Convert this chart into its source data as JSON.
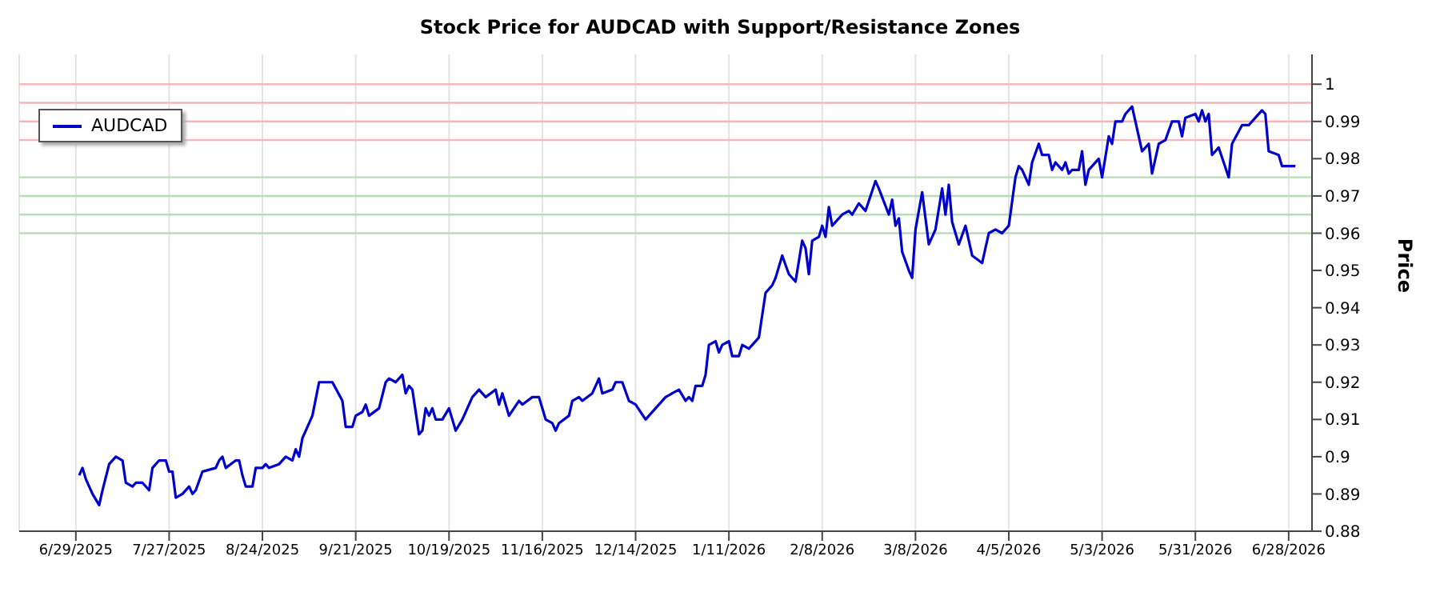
{
  "chart_data": {
    "type": "line",
    "title": "Stock Price for AUDCAD with Support/Resistance Zones",
    "ylabel": "Price",
    "x": [
      "2025-06-30",
      "2025-07-01",
      "2025-07-02",
      "2025-07-04",
      "2025-07-06",
      "2025-07-07",
      "2025-07-09",
      "2025-07-11",
      "2025-07-13",
      "2025-07-14",
      "2025-07-16",
      "2025-07-17",
      "2025-07-19",
      "2025-07-21",
      "2025-07-22",
      "2025-07-24",
      "2025-07-26",
      "2025-07-27",
      "2025-07-28",
      "2025-07-29",
      "2025-07-31",
      "2025-08-02",
      "2025-08-03",
      "2025-08-04",
      "2025-08-06",
      "2025-08-10",
      "2025-08-11",
      "2025-08-12",
      "2025-08-13",
      "2025-08-16",
      "2025-08-17",
      "2025-08-18",
      "2025-08-19",
      "2025-08-21",
      "2025-08-22",
      "2025-08-24",
      "2025-08-25",
      "2025-08-26",
      "2025-08-29",
      "2025-08-31",
      "2025-09-02",
      "2025-09-03",
      "2025-09-04",
      "2025-09-05",
      "2025-09-06",
      "2025-09-08",
      "2025-09-10",
      "2025-09-13",
      "2025-09-14",
      "2025-09-17",
      "2025-09-18",
      "2025-09-20",
      "2025-09-21",
      "2025-09-23",
      "2025-09-24",
      "2025-09-25",
      "2025-09-28",
      "2025-09-30",
      "2025-10-01",
      "2025-10-03",
      "2025-10-05",
      "2025-10-06",
      "2025-10-07",
      "2025-10-08",
      "2025-10-10",
      "2025-10-11",
      "2025-10-12",
      "2025-10-13",
      "2025-10-14",
      "2025-10-15",
      "2025-10-17",
      "2025-10-19",
      "2025-10-21",
      "2025-10-23",
      "2025-10-26",
      "2025-10-28",
      "2025-10-30",
      "2025-11-02",
      "2025-11-03",
      "2025-11-04",
      "2025-11-06",
      "2025-11-09",
      "2025-11-10",
      "2025-11-13",
      "2025-11-15",
      "2025-11-17",
      "2025-11-19",
      "2025-11-20",
      "2025-11-21",
      "2025-11-24",
      "2025-11-25",
      "2025-11-27",
      "2025-11-28",
      "2025-12-01",
      "2025-12-03",
      "2025-12-04",
      "2025-12-07",
      "2025-12-08",
      "2025-12-10",
      "2025-12-12",
      "2025-12-14",
      "2025-12-17",
      "2025-12-18",
      "2025-12-23",
      "2025-12-25",
      "2025-12-27",
      "2025-12-29",
      "2025-12-30",
      "2025-12-31",
      "2026-01-01",
      "2026-01-03",
      "2026-01-04",
      "2026-01-05",
      "2026-01-07",
      "2026-01-08",
      "2026-01-09",
      "2026-01-11",
      "2026-01-12",
      "2026-01-14",
      "2026-01-15",
      "2026-01-17",
      "2026-01-20",
      "2026-01-22",
      "2026-01-24",
      "2026-01-25",
      "2026-01-27",
      "2026-01-29",
      "2026-01-31",
      "2026-02-02",
      "2026-02-03",
      "2026-02-04",
      "2026-02-05",
      "2026-02-07",
      "2026-02-08",
      "2026-02-09",
      "2026-02-10",
      "2026-02-11",
      "2026-02-14",
      "2026-02-16",
      "2026-02-17",
      "2026-02-19",
      "2026-02-21",
      "2026-02-24",
      "2026-02-25",
      "2026-02-28",
      "2026-03-01",
      "2026-03-02",
      "2026-03-03",
      "2026-03-04",
      "2026-03-06",
      "2026-03-07",
      "2026-03-08",
      "2026-03-10",
      "2026-03-12",
      "2026-03-14",
      "2026-03-16",
      "2026-03-17",
      "2026-03-18",
      "2026-03-19",
      "2026-03-21",
      "2026-03-23",
      "2026-03-25",
      "2026-03-28",
      "2026-03-30",
      "2026-04-01",
      "2026-04-03",
      "2026-04-05",
      "2026-04-07",
      "2026-04-08",
      "2026-04-09",
      "2026-04-11",
      "2026-04-12",
      "2026-04-14",
      "2026-04-15",
      "2026-04-17",
      "2026-04-18",
      "2026-04-19",
      "2026-04-21",
      "2026-04-22",
      "2026-04-23",
      "2026-04-24",
      "2026-04-26",
      "2026-04-27",
      "2026-04-28",
      "2026-04-29",
      "2026-05-02",
      "2026-05-03",
      "2026-05-05",
      "2026-05-06",
      "2026-05-07",
      "2026-05-09",
      "2026-05-10",
      "2026-05-12",
      "2026-05-15",
      "2026-05-17",
      "2026-05-18",
      "2026-05-20",
      "2026-05-22",
      "2026-05-24",
      "2026-05-26",
      "2026-05-27",
      "2026-05-28",
      "2026-05-31",
      "2026-06-01",
      "2026-06-02",
      "2026-06-03",
      "2026-06-04",
      "2026-06-05",
      "2026-06-07",
      "2026-06-10",
      "2026-06-11",
      "2026-06-14",
      "2026-06-16",
      "2026-06-18",
      "2026-06-20",
      "2026-06-21",
      "2026-06-22",
      "2026-06-25",
      "2026-06-26",
      "2026-06-28",
      "2026-06-30"
    ],
    "series": [
      {
        "name": "AUDCAD",
        "color": "#0000cd",
        "values": [
          0.895,
          0.897,
          0.894,
          0.89,
          0.887,
          0.891,
          0.898,
          0.9,
          0.899,
          0.893,
          0.892,
          0.893,
          0.893,
          0.891,
          0.897,
          0.899,
          0.899,
          0.896,
          0.896,
          0.889,
          0.89,
          0.892,
          0.89,
          0.891,
          0.896,
          0.897,
          0.899,
          0.9,
          0.897,
          0.899,
          0.899,
          0.895,
          0.892,
          0.892,
          0.897,
          0.897,
          0.898,
          0.897,
          0.898,
          0.9,
          0.899,
          0.902,
          0.9,
          0.905,
          0.907,
          0.911,
          0.92,
          0.92,
          0.92,
          0.915,
          0.908,
          0.908,
          0.911,
          0.912,
          0.914,
          0.911,
          0.913,
          0.92,
          0.921,
          0.92,
          0.922,
          0.917,
          0.919,
          0.918,
          0.906,
          0.907,
          0.913,
          0.911,
          0.913,
          0.91,
          0.91,
          0.913,
          0.907,
          0.91,
          0.916,
          0.918,
          0.916,
          0.918,
          0.914,
          0.917,
          0.911,
          0.915,
          0.914,
          0.916,
          0.916,
          0.91,
          0.909,
          0.907,
          0.909,
          0.911,
          0.915,
          0.916,
          0.915,
          0.917,
          0.921,
          0.917,
          0.918,
          0.92,
          0.92,
          0.915,
          0.914,
          0.91,
          0.911,
          0.916,
          0.917,
          0.918,
          0.915,
          0.916,
          0.915,
          0.919,
          0.919,
          0.922,
          0.93,
          0.931,
          0.928,
          0.93,
          0.931,
          0.927,
          0.927,
          0.93,
          0.929,
          0.932,
          0.944,
          0.946,
          0.948,
          0.954,
          0.949,
          0.947,
          0.958,
          0.956,
          0.949,
          0.958,
          0.959,
          0.962,
          0.959,
          0.967,
          0.962,
          0.965,
          0.966,
          0.965,
          0.968,
          0.966,
          0.974,
          0.972,
          0.965,
          0.969,
          0.962,
          0.964,
          0.955,
          0.95,
          0.948,
          0.961,
          0.971,
          0.957,
          0.961,
          0.972,
          0.965,
          0.973,
          0.963,
          0.957,
          0.962,
          0.954,
          0.952,
          0.96,
          0.961,
          0.96,
          0.962,
          0.975,
          0.978,
          0.977,
          0.973,
          0.979,
          0.984,
          0.981,
          0.981,
          0.977,
          0.979,
          0.977,
          0.979,
          0.976,
          0.977,
          0.977,
          0.982,
          0.973,
          0.977,
          0.98,
          0.975,
          0.986,
          0.984,
          0.99,
          0.99,
          0.992,
          0.994,
          0.982,
          0.984,
          0.976,
          0.984,
          0.985,
          0.99,
          0.99,
          0.986,
          0.991,
          0.992,
          0.99,
          0.993,
          0.99,
          0.992,
          0.981,
          0.983,
          0.975,
          0.984,
          0.989,
          0.989,
          0.991,
          0.993,
          0.992,
          0.982,
          0.981,
          0.978,
          0.978,
          0.978
        ]
      }
    ],
    "xlim": [
      "2025-06-12",
      "2026-07-05"
    ],
    "xticks": [
      {
        "value": "2025-06-29",
        "label": "6/29/2025"
      },
      {
        "value": "2025-07-27",
        "label": "7/27/2025"
      },
      {
        "value": "2025-08-24",
        "label": "8/24/2025"
      },
      {
        "value": "2025-09-21",
        "label": "9/21/2025"
      },
      {
        "value": "2025-10-19",
        "label": "10/19/2025"
      },
      {
        "value": "2025-11-16",
        "label": "11/16/2025"
      },
      {
        "value": "2025-12-14",
        "label": "12/14/2025"
      },
      {
        "value": "2026-01-11",
        "label": "1/11/2026"
      },
      {
        "value": "2026-02-08",
        "label": "2/8/2026"
      },
      {
        "value": "2026-03-08",
        "label": "3/8/2026"
      },
      {
        "value": "2026-04-05",
        "label": "4/5/2026"
      },
      {
        "value": "2026-05-03",
        "label": "5/3/2026"
      },
      {
        "value": "2026-05-31",
        "label": "5/31/2026"
      },
      {
        "value": "2026-06-28",
        "label": "6/28/2026"
      }
    ],
    "ylim": [
      0.88,
      1.008
    ],
    "yticks": [
      0.88,
      0.89,
      0.9,
      0.91,
      0.92,
      0.93,
      0.94,
      0.95,
      0.96,
      0.97,
      0.98,
      0.99,
      1
    ],
    "ref_lines": [
      {
        "axis": "y",
        "value": 1.0,
        "color": "#f4b8b8"
      },
      {
        "axis": "y",
        "value": 0.995,
        "color": "#f4b8b8"
      },
      {
        "axis": "y",
        "value": 0.99,
        "color": "#f4b8b8"
      },
      {
        "axis": "y",
        "value": 0.985,
        "color": "#f4b8b8"
      },
      {
        "axis": "y",
        "value": 0.975,
        "color": "#b8dcb8"
      },
      {
        "axis": "y",
        "value": 0.97,
        "color": "#b8dcb8"
      },
      {
        "axis": "y",
        "value": 0.965,
        "color": "#b8dcb8"
      },
      {
        "axis": "y",
        "value": 0.96,
        "color": "#b8dcb8"
      }
    ],
    "grid": "x",
    "legend": "top left",
    "marker": "none",
    "line_style": "solid"
  }
}
